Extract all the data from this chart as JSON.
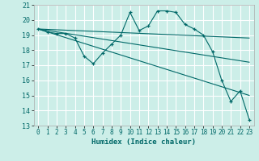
{
  "xlabel": "Humidex (Indice chaleur)",
  "background_color": "#cceee8",
  "grid_color": "#ffffff",
  "line_color": "#006868",
  "xlim": [
    -0.5,
    23.5
  ],
  "ylim": [
    13,
    21
  ],
  "xtick_vals": [
    0,
    1,
    2,
    3,
    4,
    5,
    6,
    7,
    8,
    9,
    10,
    11,
    12,
    13,
    14,
    15,
    16,
    17,
    18,
    19,
    20,
    21,
    22,
    23
  ],
  "ytick_vals": [
    13,
    14,
    15,
    16,
    17,
    18,
    19,
    20,
    21
  ],
  "series": [
    {
      "x": [
        0,
        1,
        2,
        3,
        4,
        5,
        6,
        7,
        8,
        9,
        10,
        11,
        12,
        13,
        14,
        15,
        16,
        17,
        18,
        19,
        20,
        21,
        22,
        23
      ],
      "y": [
        19.4,
        19.2,
        19.1,
        19.1,
        18.8,
        17.6,
        17.1,
        17.8,
        18.4,
        19.0,
        20.5,
        19.3,
        19.6,
        20.6,
        20.6,
        20.5,
        19.7,
        19.4,
        19.0,
        17.9,
        16.0,
        14.6,
        15.3,
        13.4
      ],
      "marker": true
    },
    {
      "x": [
        0,
        23
      ],
      "y": [
        19.4,
        18.8
      ],
      "marker": false
    },
    {
      "x": [
        0,
        23
      ],
      "y": [
        19.4,
        17.2
      ],
      "marker": false
    },
    {
      "x": [
        0,
        23
      ],
      "y": [
        19.4,
        15.0
      ],
      "marker": false
    }
  ]
}
